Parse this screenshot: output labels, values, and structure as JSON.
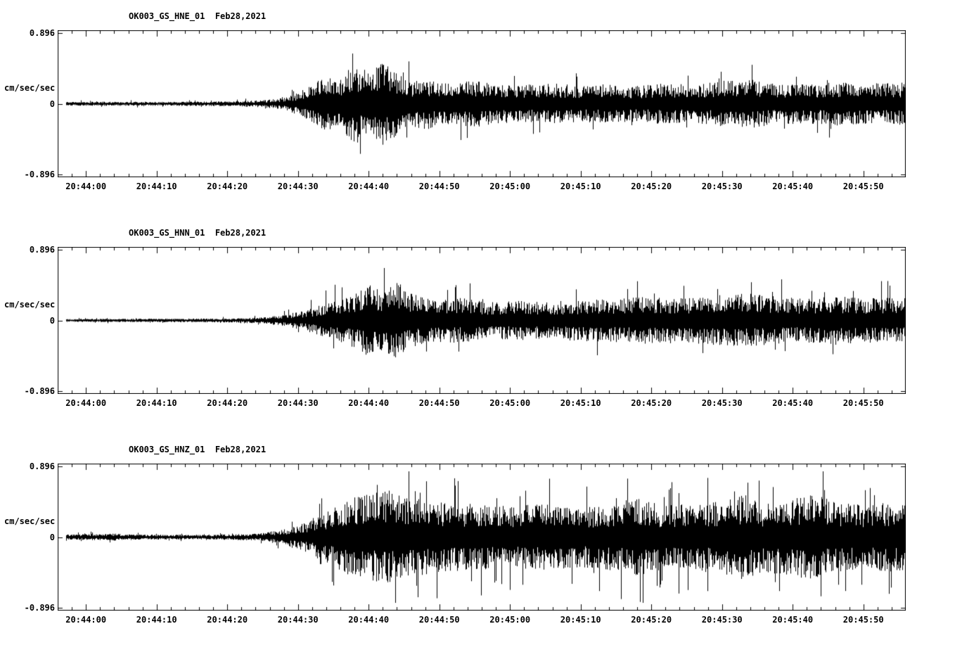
{
  "page": {
    "background": "#ffffff",
    "text_color": "#000000"
  },
  "chart_data": [
    {
      "type": "line",
      "title": "OK003_GS_HNE_01  Feb28,2021",
      "ylabel": "cm/sec/sec",
      "ylim": [
        -0.896,
        0.896
      ],
      "ytick_labels": [
        "0.896",
        "0",
        "-0.896"
      ],
      "ytick_values": [
        0.896,
        0,
        -0.896
      ],
      "xtick_labels": [
        "20:44:00",
        "20:44:10",
        "20:44:20",
        "20:44:30",
        "20:44:40",
        "20:44:50",
        "20:45:00",
        "20:45:10",
        "20:45:20",
        "20:45:30",
        "20:45:40",
        "20:45:50"
      ],
      "xticks_seconds": [
        0,
        10,
        20,
        30,
        40,
        50,
        60,
        70,
        80,
        90,
        100,
        110
      ],
      "x_seconds_range": [
        -4,
        116
      ],
      "major_tick_interval_s": 10,
      "minor_tick_interval_s": 2,
      "line_color": "#000000",
      "envelope": {
        "t_seconds": [
          -4,
          10,
          20,
          25,
          28,
          30,
          32,
          34,
          36,
          38,
          40,
          42,
          44,
          46,
          48,
          51,
          55,
          58,
          62,
          66,
          70,
          74,
          78,
          82,
          86,
          90,
          94,
          98,
          102,
          106,
          110,
          116
        ],
        "amplitude": [
          0.025,
          0.027,
          0.03,
          0.045,
          0.075,
          0.14,
          0.24,
          0.36,
          0.32,
          0.52,
          0.42,
          0.55,
          0.4,
          0.3,
          0.33,
          0.26,
          0.3,
          0.25,
          0.24,
          0.26,
          0.23,
          0.25,
          0.23,
          0.26,
          0.24,
          0.29,
          0.31,
          0.26,
          0.25,
          0.28,
          0.26,
          0.27
        ]
      },
      "render": {
        "seed": 11,
        "spike_chance": 0.02,
        "trace_start_s": -2.8
      }
    },
    {
      "type": "line",
      "title": "OK003_GS_HNN_01  Feb28,2021",
      "ylabel": "cm/sec/sec",
      "ylim": [
        -0.896,
        0.896
      ],
      "ytick_labels": [
        "0.896",
        "0",
        "-0.896"
      ],
      "ytick_values": [
        0.896,
        0,
        -0.896
      ],
      "xtick_labels": [
        "20:44:00",
        "20:44:10",
        "20:44:20",
        "20:44:30",
        "20:44:40",
        "20:44:50",
        "20:45:00",
        "20:45:10",
        "20:45:20",
        "20:45:30",
        "20:45:40",
        "20:45:50"
      ],
      "xticks_seconds": [
        0,
        10,
        20,
        30,
        40,
        50,
        60,
        70,
        80,
        90,
        100,
        110
      ],
      "x_seconds_range": [
        -4,
        116
      ],
      "major_tick_interval_s": 10,
      "minor_tick_interval_s": 2,
      "line_color": "#000000",
      "envelope": {
        "t_seconds": [
          -4,
          10,
          20,
          25,
          28,
          31,
          34,
          37,
          40,
          42,
          44,
          46,
          49,
          53,
          57,
          61,
          65,
          70,
          75,
          80,
          85,
          90,
          94,
          98,
          102,
          106,
          110,
          116
        ],
        "amplitude": [
          0.02,
          0.022,
          0.026,
          0.04,
          0.07,
          0.13,
          0.22,
          0.3,
          0.46,
          0.38,
          0.5,
          0.34,
          0.27,
          0.29,
          0.23,
          0.25,
          0.24,
          0.26,
          0.28,
          0.3,
          0.28,
          0.33,
          0.34,
          0.3,
          0.28,
          0.31,
          0.28,
          0.29
        ]
      },
      "render": {
        "seed": 22,
        "spike_chance": 0.02,
        "trace_start_s": -2.8
      }
    },
    {
      "type": "line",
      "title": "OK003_GS_HNZ_01  Feb28,2021",
      "ylabel": "cm/sec/sec",
      "ylim": [
        -0.896,
        0.896
      ],
      "ytick_labels": [
        "0.896",
        "0",
        "-0.896"
      ],
      "ytick_values": [
        0.896,
        0,
        -0.896
      ],
      "xtick_labels": [
        "20:44:00",
        "20:44:10",
        "20:44:20",
        "20:44:30",
        "20:44:40",
        "20:44:50",
        "20:45:00",
        "20:45:10",
        "20:45:20",
        "20:45:30",
        "20:45:40",
        "20:45:50"
      ],
      "xticks_seconds": [
        0,
        10,
        20,
        30,
        40,
        50,
        60,
        70,
        80,
        90,
        100,
        110
      ],
      "x_seconds_range": [
        -4,
        116
      ],
      "major_tick_interval_s": 10,
      "minor_tick_interval_s": 2,
      "line_color": "#000000",
      "envelope": {
        "t_seconds": [
          -4,
          4,
          8,
          15,
          20,
          25,
          28,
          31,
          34,
          37,
          40,
          43,
          46,
          50,
          55,
          60,
          65,
          70,
          74,
          78,
          82,
          86,
          90,
          93,
          96,
          100,
          103,
          106,
          110,
          116
        ],
        "amplitude": [
          0.03,
          0.045,
          0.032,
          0.03,
          0.034,
          0.05,
          0.1,
          0.19,
          0.33,
          0.48,
          0.55,
          0.6,
          0.5,
          0.45,
          0.42,
          0.4,
          0.42,
          0.38,
          0.42,
          0.5,
          0.4,
          0.44,
          0.46,
          0.55,
          0.44,
          0.5,
          0.56,
          0.44,
          0.42,
          0.45
        ]
      },
      "render": {
        "seed": 33,
        "spike_chance": 0.035,
        "trace_start_s": -2.8
      }
    }
  ]
}
